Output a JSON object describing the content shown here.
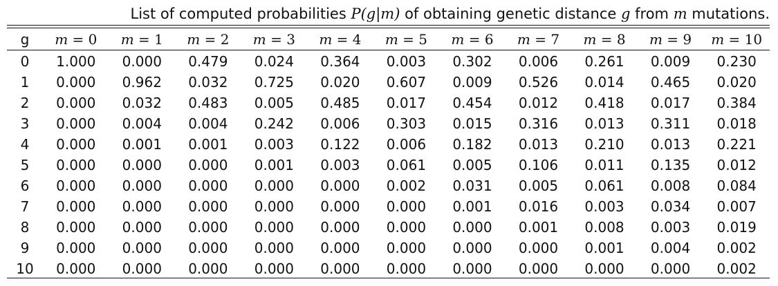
{
  "caption": {
    "text_before": "List of computed probabilities ",
    "math_p": "P(g|m)",
    "text_mid": " of obtaining genetic distance ",
    "math_g": "g",
    "text_from": " from ",
    "math_m": "m",
    "text_after": " mutations."
  },
  "table": {
    "row_header_label": "g",
    "column_var": "m",
    "column_values": [
      "0",
      "1",
      "2",
      "3",
      "4",
      "5",
      "6",
      "7",
      "8",
      "9",
      "10"
    ],
    "rows": [
      {
        "g": "0",
        "values": [
          "1.000",
          "0.000",
          "0.479",
          "0.024",
          "0.364",
          "0.003",
          "0.302",
          "0.006",
          "0.261",
          "0.009",
          "0.230"
        ]
      },
      {
        "g": "1",
        "values": [
          "0.000",
          "0.962",
          "0.032",
          "0.725",
          "0.020",
          "0.607",
          "0.009",
          "0.526",
          "0.014",
          "0.465",
          "0.020"
        ]
      },
      {
        "g": "2",
        "values": [
          "0.000",
          "0.032",
          "0.483",
          "0.005",
          "0.485",
          "0.017",
          "0.454",
          "0.012",
          "0.418",
          "0.017",
          "0.384"
        ]
      },
      {
        "g": "3",
        "values": [
          "0.000",
          "0.004",
          "0.004",
          "0.242",
          "0.006",
          "0.303",
          "0.015",
          "0.316",
          "0.013",
          "0.311",
          "0.018"
        ]
      },
      {
        "g": "4",
        "values": [
          "0.000",
          "0.001",
          "0.001",
          "0.003",
          "0.122",
          "0.006",
          "0.182",
          "0.013",
          "0.210",
          "0.013",
          "0.221"
        ]
      },
      {
        "g": "5",
        "values": [
          "0.000",
          "0.000",
          "0.000",
          "0.001",
          "0.003",
          "0.061",
          "0.005",
          "0.106",
          "0.011",
          "0.135",
          "0.012"
        ]
      },
      {
        "g": "6",
        "values": [
          "0.000",
          "0.000",
          "0.000",
          "0.000",
          "0.000",
          "0.002",
          "0.031",
          "0.005",
          "0.061",
          "0.008",
          "0.084"
        ]
      },
      {
        "g": "7",
        "values": [
          "0.000",
          "0.000",
          "0.000",
          "0.000",
          "0.000",
          "0.000",
          "0.001",
          "0.016",
          "0.003",
          "0.034",
          "0.007"
        ]
      },
      {
        "g": "8",
        "values": [
          "0.000",
          "0.000",
          "0.000",
          "0.000",
          "0.000",
          "0.000",
          "0.000",
          "0.001",
          "0.008",
          "0.003",
          "0.019"
        ]
      },
      {
        "g": "9",
        "values": [
          "0.000",
          "0.000",
          "0.000",
          "0.000",
          "0.000",
          "0.000",
          "0.000",
          "0.000",
          "0.001",
          "0.004",
          "0.002"
        ]
      },
      {
        "g": "10",
        "values": [
          "0.000",
          "0.000",
          "0.000",
          "0.000",
          "0.000",
          "0.000",
          "0.000",
          "0.000",
          "0.000",
          "0.000",
          "0.002"
        ]
      }
    ]
  }
}
